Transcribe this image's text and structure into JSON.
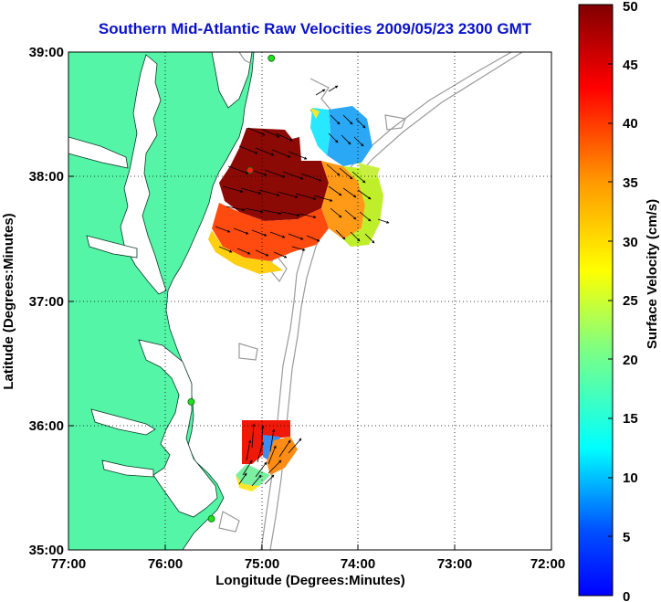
{
  "title": "Southern Mid-Atlantic Raw Velocities 2009/05/23 2300 GMT",
  "map": {
    "xlabel": "Longitude (Degrees:Minutes)",
    "ylabel": "Latitude (Degrees:Minutes)",
    "lon_ticks": [
      "77:00",
      "76:00",
      "75:00",
      "74:00",
      "73:00",
      "72:00"
    ],
    "lat_ticks": [
      "39:00",
      "38:00",
      "37:00",
      "36:00",
      "35:00"
    ],
    "lon_range": [
      -77,
      -72
    ],
    "lat_range": [
      35,
      39
    ],
    "land_color": "#55f5a8",
    "contour_color": "#9a9a9a",
    "grid": "dotted"
  },
  "colorbar": {
    "label": "Surface Velocity (cm/s)",
    "ticks": [
      "0",
      "5",
      "10",
      "15",
      "20",
      "25",
      "30",
      "35",
      "40",
      "45",
      "50"
    ],
    "min": 0,
    "max": 50,
    "colormap": "jet"
  },
  "stations": [
    {
      "lon": -75.12,
      "lat": 38.05
    },
    {
      "lon": -74.9,
      "lat": 38.95
    },
    {
      "lon": -75.73,
      "lat": 36.19
    },
    {
      "lon": -75.52,
      "lat": 35.25
    }
  ]
}
